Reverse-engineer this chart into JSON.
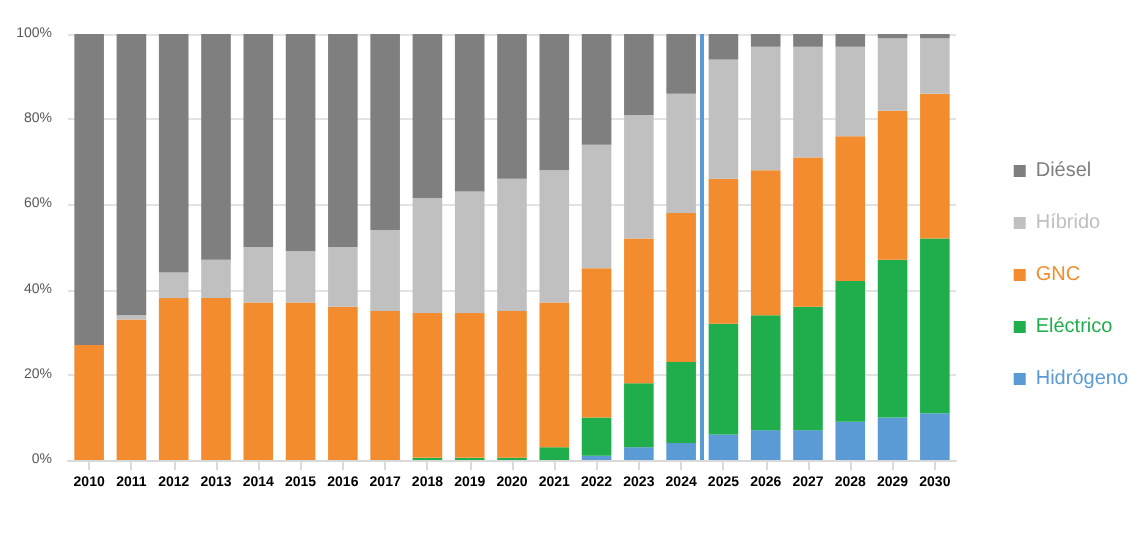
{
  "chart_data": {
    "type": "bar",
    "stacked": true,
    "x": [
      2010,
      2011,
      2012,
      2013,
      2014,
      2015,
      2016,
      2017,
      2018,
      2019,
      2020,
      2021,
      2022,
      2023,
      2024,
      2025,
      2026,
      2027,
      2028,
      2029,
      2030
    ],
    "xlim": [
      2009.5,
      2030.5
    ],
    "xticks": [
      2010,
      2011,
      2012,
      2013,
      2014,
      2015,
      2016,
      2017,
      2018,
      2019,
      2020,
      2021,
      2022,
      2023,
      2024,
      2025,
      2026,
      2027,
      2028,
      2029,
      2030
    ],
    "ylim": [
      0,
      100
    ],
    "yticks": [
      {
        "value": 0,
        "label": "0%"
      },
      {
        "value": 20,
        "label": "20%"
      },
      {
        "value": 40,
        "label": "40%"
      },
      {
        "value": 60,
        "label": "60%"
      },
      {
        "value": 80,
        "label": "80%"
      },
      {
        "value": 100,
        "label": "100%"
      }
    ],
    "grid": "y",
    "legend": "right",
    "ref_lines": [
      {
        "axis": "x",
        "value": 2024.5,
        "color": "#5b9bd5",
        "line_style": "solid"
      }
    ],
    "series": [
      {
        "name": "Hidrógeno",
        "color": "#5b9bd5",
        "values": [
          0,
          0,
          0,
          0,
          0,
          0,
          0,
          0,
          0,
          0,
          0,
          0,
          1,
          3,
          4,
          6,
          7,
          7,
          9,
          10,
          11
        ]
      },
      {
        "name": "Eléctrico",
        "color": "#1fae4b",
        "values": [
          0,
          0,
          0,
          0,
          0,
          0,
          0,
          0,
          0.5,
          0.5,
          0.5,
          3,
          9,
          15,
          19,
          26,
          27,
          29,
          33,
          37,
          41
        ]
      },
      {
        "name": "GNC",
        "color": "#f28c2e",
        "values": [
          27,
          33,
          38,
          38,
          37,
          37,
          36,
          35,
          34,
          34,
          34.5,
          34,
          35,
          34,
          35,
          34,
          34,
          35,
          34,
          35,
          34
        ]
      },
      {
        "name": "Híbrido",
        "color": "#c0c0c0",
        "values": [
          0,
          1,
          6,
          9,
          13,
          12,
          14,
          19,
          27,
          28.5,
          31,
          31,
          29,
          29,
          28,
          28,
          29,
          26,
          21,
          17,
          13
        ]
      },
      {
        "name": "Diésel",
        "color": "#7f7f7f",
        "values": [
          73,
          66,
          56,
          53,
          50,
          51,
          50,
          46,
          38.5,
          37,
          34,
          32,
          26,
          19,
          14,
          6,
          3,
          3,
          3,
          1,
          1
        ]
      }
    ]
  }
}
